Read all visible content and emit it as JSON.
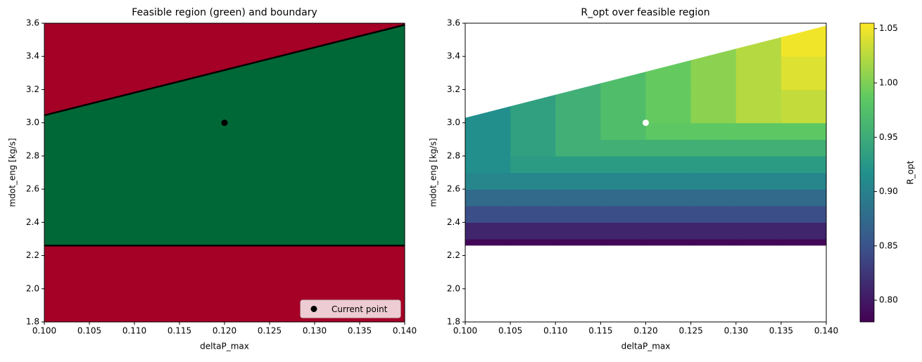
{
  "chart_data": [
    {
      "type": "region",
      "title": "Feasible region (green) and boundary",
      "xlabel": "deltaP_max",
      "ylabel": "mdot_eng [kg/s]",
      "xlim": [
        0.1,
        0.14
      ],
      "ylim": [
        1.8,
        3.6
      ],
      "xticks": [
        {
          "value": 0.1,
          "label": "0.100"
        },
        0.105,
        {
          "value": 0.11,
          "label": "0.110"
        },
        0.115,
        {
          "value": 0.12,
          "label": "0.120"
        },
        0.125,
        {
          "value": 0.13,
          "label": "0.130"
        },
        0.135,
        {
          "value": 0.14,
          "label": "0.140"
        }
      ],
      "yticks": [
        1.8,
        {
          "value": 2.0,
          "label": "2.0"
        },
        2.2,
        2.4,
        2.6,
        2.8,
        {
          "value": 3.0,
          "label": "3.0"
        },
        3.2,
        3.4,
        3.6
      ],
      "infeasible_color": "#a50026",
      "feasible_color": "#006837",
      "boundary_color": "#000000",
      "boundary": {
        "x": [
          0.1,
          0.14
        ],
        "upper": [
          3.045,
          3.59
        ],
        "lower": [
          2.26,
          2.26
        ]
      },
      "series": [
        {
          "name": "Current point",
          "color": "#000000",
          "x": [
            0.12
          ],
          "values": [
            3.0
          ]
        }
      ],
      "legend": "lower right"
    },
    {
      "type": "heatmap",
      "title": "R_opt over feasible region",
      "xlabel": "deltaP_max",
      "ylabel": "mdot_eng [kg/s]",
      "xlim": [
        0.1,
        0.14
      ],
      "ylim": [
        1.8,
        3.6
      ],
      "xticks": [
        {
          "value": 0.1,
          "label": "0.100"
        },
        0.105,
        {
          "value": 0.11,
          "label": "0.110"
        },
        0.115,
        {
          "value": 0.12,
          "label": "0.120"
        },
        0.125,
        {
          "value": 0.13,
          "label": "0.130"
        },
        0.135,
        {
          "value": 0.14,
          "label": "0.140"
        }
      ],
      "yticks": [
        1.8,
        {
          "value": 2.0,
          "label": "2.0"
        },
        2.2,
        2.4,
        2.6,
        2.8,
        {
          "value": 3.0,
          "label": "3.0"
        },
        3.2,
        3.4,
        3.6
      ],
      "boundary": {
        "x": [
          0.1,
          0.14
        ],
        "upper": [
          3.03,
          3.585
        ],
        "lower": [
          2.26,
          2.26
        ]
      },
      "x_edges": [
        0.1,
        0.105,
        0.11,
        0.115,
        0.12,
        0.125,
        0.13,
        0.135,
        0.14
      ],
      "y_edges": [
        2.26,
        2.3,
        2.4,
        2.5,
        2.6,
        2.7,
        2.8,
        2.9,
        3.0,
        3.2,
        3.4,
        3.6
      ],
      "z": [
        [
          0.785,
          0.785,
          0.785,
          0.785,
          0.785,
          0.785,
          0.785,
          0.785
        ],
        [
          0.81,
          0.81,
          0.81,
          0.81,
          0.81,
          0.81,
          0.81,
          0.81
        ],
        [
          0.845,
          0.845,
          0.845,
          0.845,
          0.845,
          0.845,
          0.845,
          0.845
        ],
        [
          0.875,
          0.875,
          0.875,
          0.875,
          0.875,
          0.875,
          0.875,
          0.875
        ],
        [
          0.905,
          0.905,
          0.905,
          0.905,
          0.905,
          0.905,
          0.905,
          0.905
        ],
        [
          0.915,
          0.93,
          0.93,
          0.93,
          0.93,
          0.93,
          0.93,
          0.93
        ],
        [
          0.915,
          0.936,
          0.954,
          0.955,
          0.955,
          0.955,
          0.955,
          0.955
        ],
        [
          0.915,
          0.936,
          0.954,
          0.971,
          0.985,
          0.985,
          0.985,
          0.985
        ],
        [
          0.915,
          0.936,
          0.954,
          0.971,
          0.989,
          1.006,
          1.024,
          1.03
        ],
        [
          0.915,
          0.936,
          0.954,
          0.971,
          0.989,
          1.006,
          1.024,
          1.041
        ],
        [
          0.915,
          0.936,
          0.954,
          0.971,
          0.989,
          1.006,
          1.024,
          1.05
        ]
      ],
      "colormap": [
        "#440154",
        "#3b528b",
        "#21918c",
        "#5ec962",
        "#fde725"
      ],
      "zlim": [
        0.78,
        1.055
      ],
      "zticks": [
        {
          "value": 0.8,
          "label": "0.80"
        },
        0.85,
        {
          "value": 0.9,
          "label": "0.90"
        },
        0.95,
        {
          "value": 1.0,
          "label": "1.00"
        },
        1.05
      ],
      "colorbar_label": "R_opt",
      "point": {
        "x": 0.12,
        "y": 3.0,
        "color": "#ffffff"
      }
    }
  ]
}
